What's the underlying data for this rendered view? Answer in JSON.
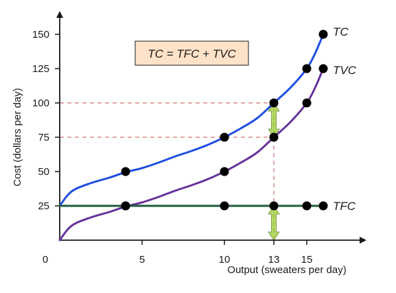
{
  "chart_data": {
    "type": "line",
    "xlabel": "Output (sweaters per day)",
    "ylabel": "Cost (dollars per day)",
    "xlim": [
      0,
      18.5
    ],
    "ylim": [
      0,
      165
    ],
    "x_ticks": [
      0,
      5,
      10,
      13,
      15
    ],
    "y_ticks": [
      25,
      50,
      75,
      100,
      125,
      150
    ],
    "annotation": "TC = TFC + TVC",
    "colors": {
      "TC": "#1f4fe0",
      "TVC": "#663399",
      "TFC": "#1e5c3a",
      "arrow": "#9acd32",
      "guide": "#c0504d",
      "box": "#fde2c8"
    },
    "guide_lines": [
      {
        "y": 100,
        "x_end": 13
      },
      {
        "y": 75,
        "x_end": 13
      },
      {
        "x": 13,
        "y_end": 100
      }
    ],
    "arrows": [
      {
        "x": 13,
        "y_from": 75,
        "y_to": 100
      },
      {
        "x": 13,
        "y_from": 0,
        "y_to": 25
      }
    ],
    "series": [
      {
        "name": "TC",
        "curve": [
          [
            0,
            25
          ],
          [
            0.5,
            33
          ],
          [
            1,
            37.5
          ],
          [
            2,
            42
          ],
          [
            3,
            45.5
          ],
          [
            4,
            49.5
          ],
          [
            5,
            52.5
          ],
          [
            6,
            56.5
          ],
          [
            7,
            61
          ],
          [
            8,
            65
          ],
          [
            9,
            69.5
          ],
          [
            10,
            75
          ],
          [
            11,
            81.5
          ],
          [
            12,
            89
          ],
          [
            13,
            100
          ],
          [
            14,
            111
          ],
          [
            15,
            125
          ],
          [
            15.5,
            136
          ],
          [
            16,
            150
          ]
        ],
        "points": [
          [
            4,
            50
          ],
          [
            10,
            75
          ],
          [
            13,
            100
          ],
          [
            15,
            125
          ],
          [
            16,
            150
          ]
        ]
      },
      {
        "name": "TVC",
        "curve": [
          [
            0,
            0
          ],
          [
            0.5,
            8
          ],
          [
            1,
            12.5
          ],
          [
            2,
            17
          ],
          [
            3,
            20.5
          ],
          [
            4,
            24.5
          ],
          [
            5,
            27.5
          ],
          [
            6,
            31.5
          ],
          [
            7,
            36
          ],
          [
            8,
            40
          ],
          [
            9,
            44.5
          ],
          [
            10,
            50
          ],
          [
            11,
            56.5
          ],
          [
            12,
            64
          ],
          [
            13,
            75
          ],
          [
            14,
            86
          ],
          [
            15,
            100
          ],
          [
            15.5,
            111
          ],
          [
            16,
            125
          ]
        ],
        "points": [
          [
            4,
            25
          ],
          [
            10,
            50
          ],
          [
            13,
            75
          ],
          [
            15,
            100
          ],
          [
            16,
            125
          ]
        ]
      },
      {
        "name": "TFC",
        "curve": [
          [
            0,
            25
          ],
          [
            16,
            25
          ]
        ],
        "points": [
          [
            4,
            25
          ],
          [
            10,
            25
          ],
          [
            13,
            25
          ],
          [
            15,
            25
          ],
          [
            16,
            25
          ]
        ]
      }
    ]
  }
}
